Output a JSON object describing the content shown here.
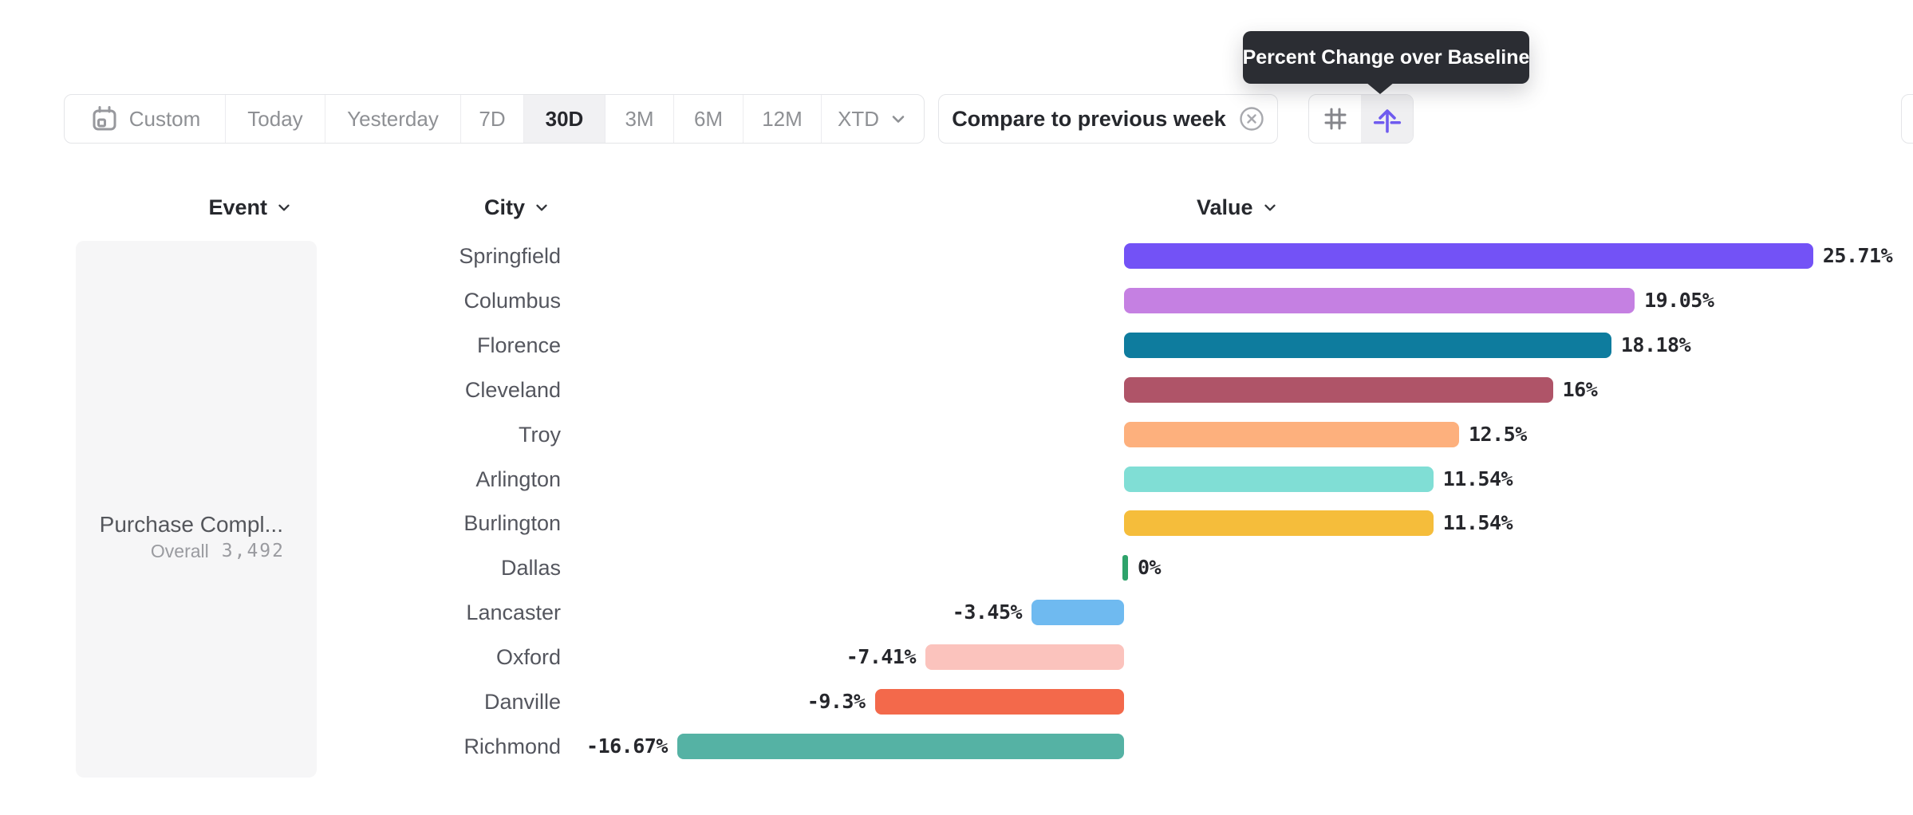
{
  "toolbar": {
    "date_ranges": [
      {
        "label": "Custom",
        "icon": "calendar-icon",
        "selected": false
      },
      {
        "label": "Today",
        "selected": false
      },
      {
        "label": "Yesterday",
        "selected": false
      },
      {
        "label": "7D",
        "selected": false
      },
      {
        "label": "30D",
        "selected": true
      },
      {
        "label": "3M",
        "selected": false
      },
      {
        "label": "6M",
        "selected": false
      },
      {
        "label": "12M",
        "selected": false
      },
      {
        "label": "XTD",
        "icon": "chevron-down-icon",
        "selected": false
      }
    ],
    "compare_button": {
      "label": "Compare to previous week",
      "icon": "close-circle-icon"
    },
    "view_toggle": [
      {
        "icon": "hash-icon",
        "selected": false
      },
      {
        "icon": "baseline-arrow-icon",
        "selected": true,
        "tooltip": "Percent Change over Baseline"
      }
    ]
  },
  "tooltip": {
    "text": "Percent Change over Baseline"
  },
  "columns": {
    "event": {
      "label": "Event"
    },
    "city": {
      "label": "City"
    },
    "value": {
      "label": "Value"
    }
  },
  "event_panel": {
    "event_name": "Purchase Compl...",
    "measure_label": "Overall",
    "measure_value": "3,492"
  },
  "chart_data": {
    "type": "bar",
    "orientation": "horizontal",
    "title": "Percent Change over Baseline",
    "xlabel": "Value",
    "ylabel": "City",
    "baseline": 0,
    "xlim": [
      -16.67,
      25.71
    ],
    "grid": false,
    "categories": [
      "Springfield",
      "Columbus",
      "Florence",
      "Cleveland",
      "Troy",
      "Arlington",
      "Burlington",
      "Dallas",
      "Lancaster",
      "Oxford",
      "Danville",
      "Richmond"
    ],
    "values": [
      25.71,
      19.05,
      18.18,
      16,
      12.5,
      11.54,
      11.54,
      0,
      -3.45,
      -7.41,
      -9.3,
      -16.67
    ],
    "value_labels": [
      "25.71%",
      "19.05%",
      "18.18%",
      "16%",
      "12.5%",
      "11.54%",
      "11.54%",
      "0%",
      "-3.45%",
      "-7.41%",
      "-9.3%",
      "-16.67%"
    ],
    "bar_colors": [
      "#7352F6",
      "#C580E2",
      "#0E7C9E",
      "#AF5468",
      "#FDB07D",
      "#80DED5",
      "#F5BD3B",
      "#2EA36B",
      "#6FBAF0",
      "#FBC3BD",
      "#F3694B",
      "#55B2A4"
    ]
  },
  "colors": {
    "accent_purple": "#6F5BEF",
    "tooltip_bg": "#2B2D33",
    "selected_segment_bg": "#F1F1F3",
    "border": "#E4E5E8",
    "zero_bar_green": "#2EA36B",
    "event_panel_bg": "#F6F6F7"
  }
}
